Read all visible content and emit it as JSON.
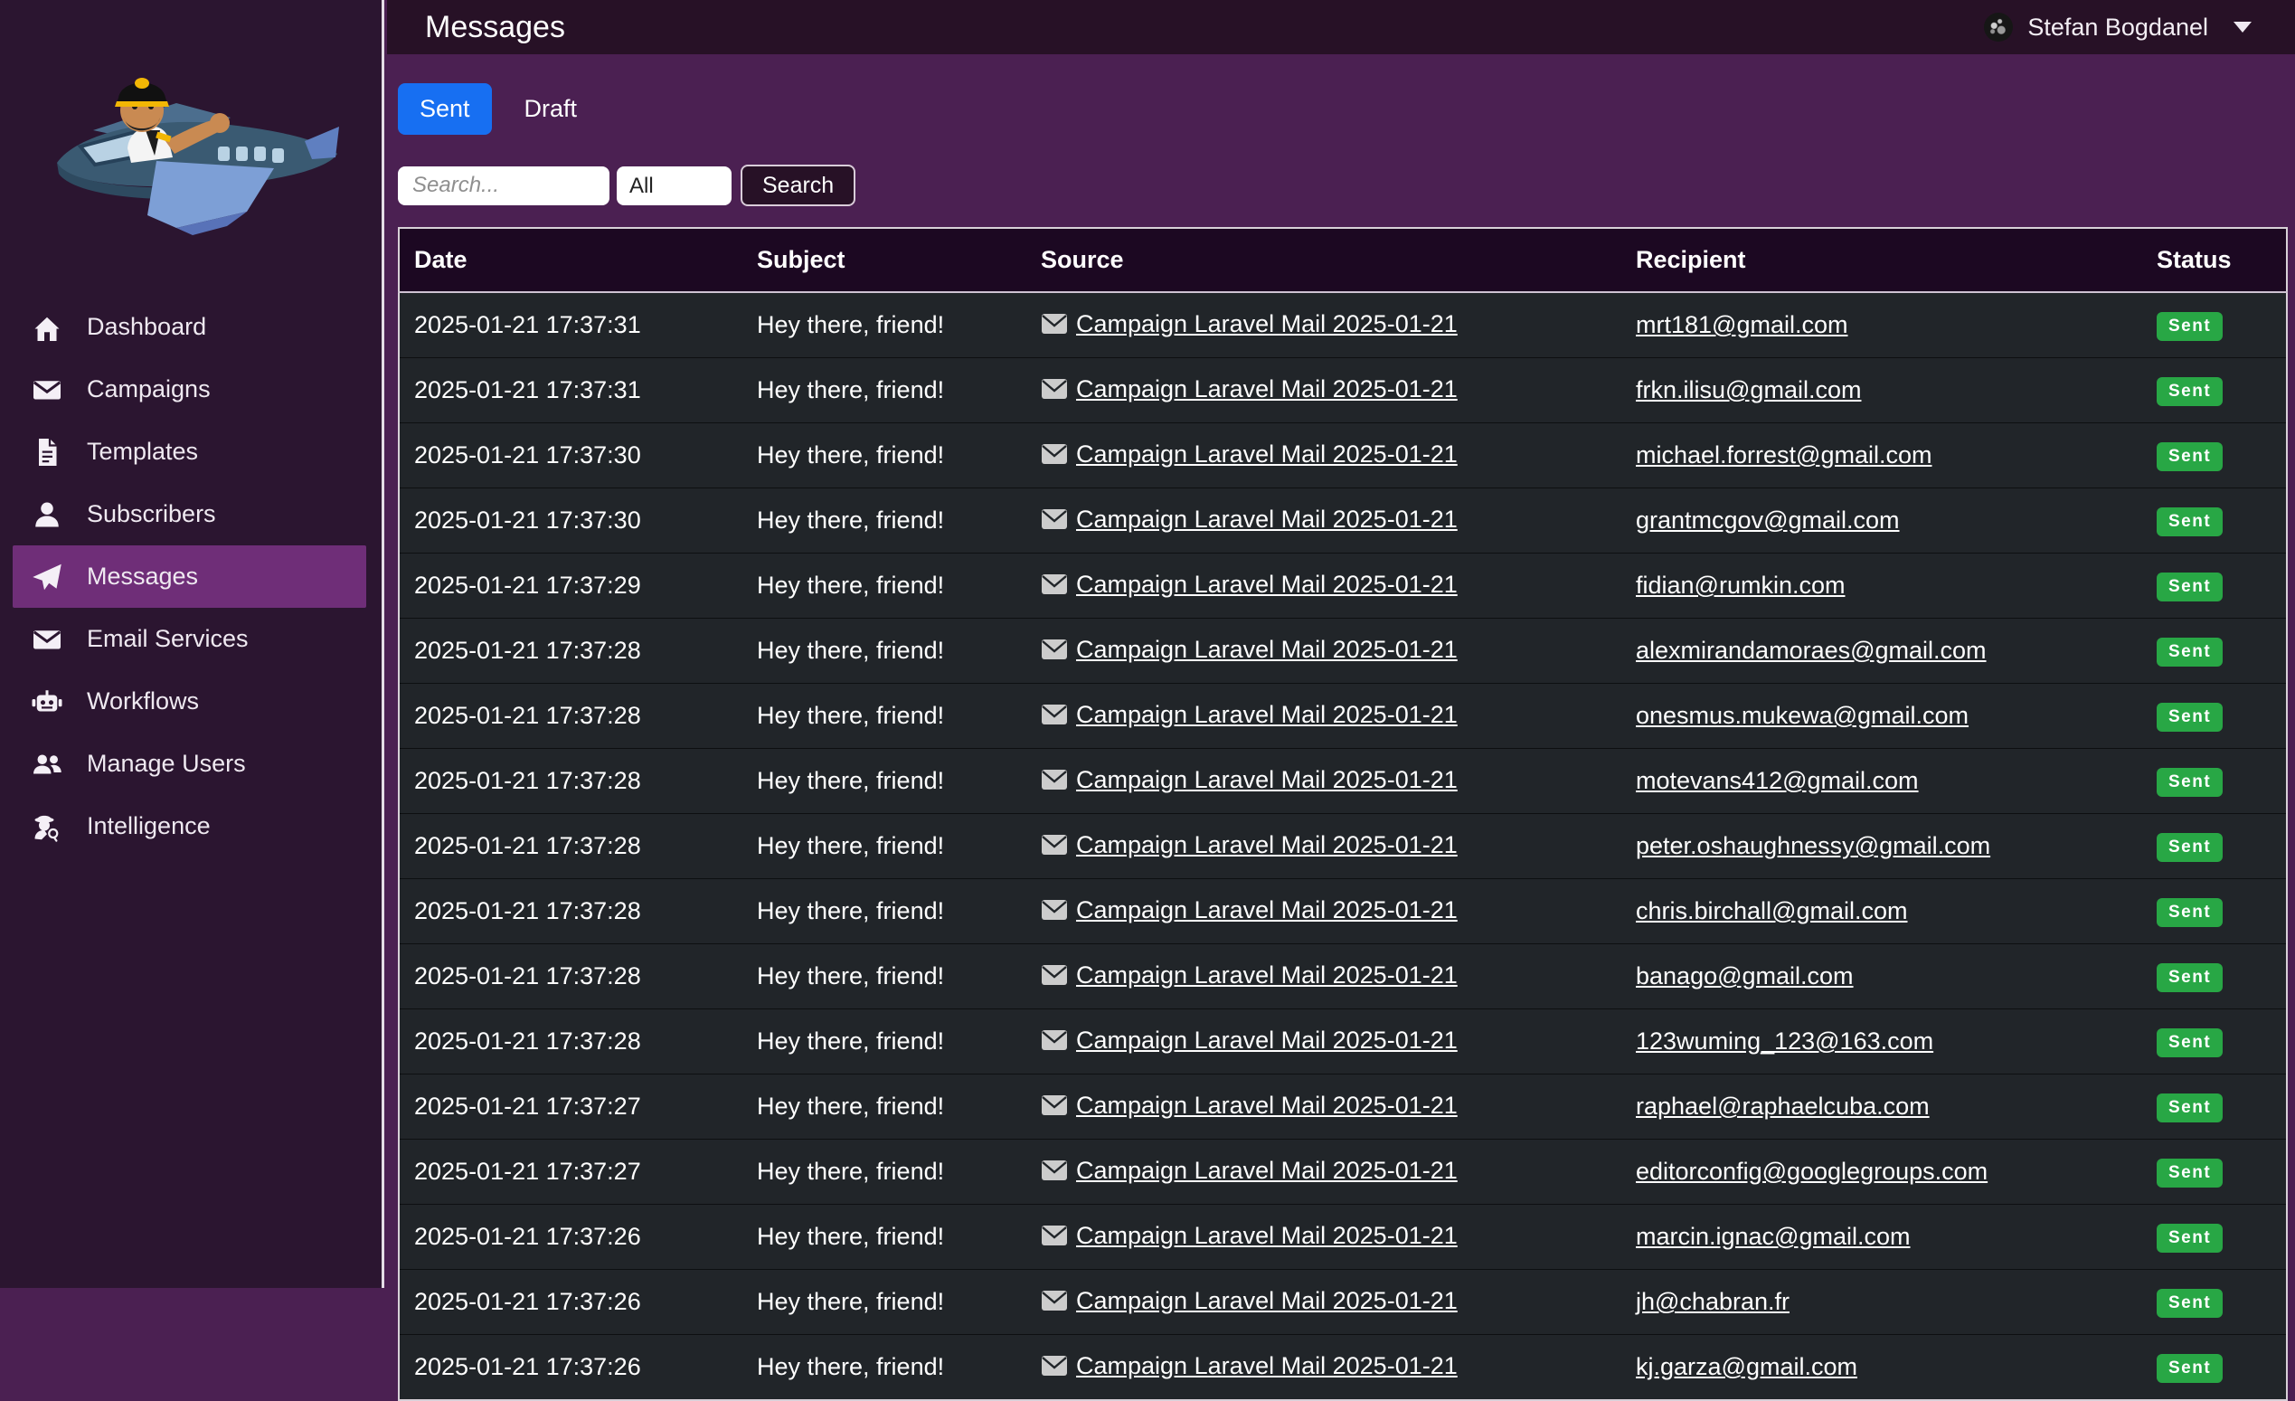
{
  "header": {
    "title": "Messages",
    "user": {
      "name": "Stefan Bogdanel"
    }
  },
  "sidebar": {
    "active_index": 4,
    "items": [
      {
        "label": "Dashboard",
        "icon": "home"
      },
      {
        "label": "Campaigns",
        "icon": "envelope"
      },
      {
        "label": "Templates",
        "icon": "file"
      },
      {
        "label": "Subscribers",
        "icon": "person"
      },
      {
        "label": "Messages",
        "icon": "paper-plane"
      },
      {
        "label": "Email Services",
        "icon": "envelope"
      },
      {
        "label": "Workflows",
        "icon": "robot"
      },
      {
        "label": "Manage Users",
        "icon": "users"
      },
      {
        "label": "Intelligence",
        "icon": "detective"
      }
    ]
  },
  "tabs": [
    {
      "label": "Sent",
      "active": true
    },
    {
      "label": "Draft",
      "active": false
    }
  ],
  "filters": {
    "search_placeholder": "Search...",
    "type_selected": "All",
    "search_button": "Search"
  },
  "table": {
    "columns": [
      "Date",
      "Subject",
      "Source",
      "Recipient",
      "Status"
    ],
    "rows": [
      {
        "date": "2025-01-21 17:37:31",
        "subject": "Hey there, friend!",
        "source": "Campaign Laravel Mail 2025-01-21",
        "recipient": "mrt181@gmail.com",
        "status": "Sent"
      },
      {
        "date": "2025-01-21 17:37:31",
        "subject": "Hey there, friend!",
        "source": "Campaign Laravel Mail 2025-01-21",
        "recipient": "frkn.ilisu@gmail.com",
        "status": "Sent"
      },
      {
        "date": "2025-01-21 17:37:30",
        "subject": "Hey there, friend!",
        "source": "Campaign Laravel Mail 2025-01-21",
        "recipient": "michael.forrest@gmail.com",
        "status": "Sent"
      },
      {
        "date": "2025-01-21 17:37:30",
        "subject": "Hey there, friend!",
        "source": "Campaign Laravel Mail 2025-01-21",
        "recipient": "grantmcgov@gmail.com",
        "status": "Sent"
      },
      {
        "date": "2025-01-21 17:37:29",
        "subject": "Hey there, friend!",
        "source": "Campaign Laravel Mail 2025-01-21",
        "recipient": "fidian@rumkin.com",
        "status": "Sent"
      },
      {
        "date": "2025-01-21 17:37:28",
        "subject": "Hey there, friend!",
        "source": "Campaign Laravel Mail 2025-01-21",
        "recipient": "alexmirandamoraes@gmail.com",
        "status": "Sent"
      },
      {
        "date": "2025-01-21 17:37:28",
        "subject": "Hey there, friend!",
        "source": "Campaign Laravel Mail 2025-01-21",
        "recipient": "onesmus.mukewa@gmail.com",
        "status": "Sent"
      },
      {
        "date": "2025-01-21 17:37:28",
        "subject": "Hey there, friend!",
        "source": "Campaign Laravel Mail 2025-01-21",
        "recipient": "motevans412@gmail.com",
        "status": "Sent"
      },
      {
        "date": "2025-01-21 17:37:28",
        "subject": "Hey there, friend!",
        "source": "Campaign Laravel Mail 2025-01-21",
        "recipient": "peter.oshaughnessy@gmail.com",
        "status": "Sent"
      },
      {
        "date": "2025-01-21 17:37:28",
        "subject": "Hey there, friend!",
        "source": "Campaign Laravel Mail 2025-01-21",
        "recipient": "chris.birchall@gmail.com",
        "status": "Sent"
      },
      {
        "date": "2025-01-21 17:37:28",
        "subject": "Hey there, friend!",
        "source": "Campaign Laravel Mail 2025-01-21",
        "recipient": "banago@gmail.com",
        "status": "Sent"
      },
      {
        "date": "2025-01-21 17:37:28",
        "subject": "Hey there, friend!",
        "source": "Campaign Laravel Mail 2025-01-21",
        "recipient": "123wuming_123@163.com",
        "status": "Sent"
      },
      {
        "date": "2025-01-21 17:37:27",
        "subject": "Hey there, friend!",
        "source": "Campaign Laravel Mail 2025-01-21",
        "recipient": "raphael@raphaelcuba.com",
        "status": "Sent"
      },
      {
        "date": "2025-01-21 17:37:27",
        "subject": "Hey there, friend!",
        "source": "Campaign Laravel Mail 2025-01-21",
        "recipient": "editorconfig@googlegroups.com",
        "status": "Sent"
      },
      {
        "date": "2025-01-21 17:37:26",
        "subject": "Hey there, friend!",
        "source": "Campaign Laravel Mail 2025-01-21",
        "recipient": "marcin.ignac@gmail.com",
        "status": "Sent"
      },
      {
        "date": "2025-01-21 17:37:26",
        "subject": "Hey there, friend!",
        "source": "Campaign Laravel Mail 2025-01-21",
        "recipient": "jh@chabran.fr",
        "status": "Sent"
      },
      {
        "date": "2025-01-21 17:37:26",
        "subject": "Hey there, friend!",
        "source": "Campaign Laravel Mail 2025-01-21",
        "recipient": "kj.garza@gmail.com",
        "status": "Sent"
      }
    ]
  },
  "colors": {
    "sidebar_bg": "#2b1530",
    "sidebar_active": "#6f2e78",
    "topbar_bg": "#271126",
    "content_bg": "#4b2052",
    "table_header_bg": "#1c0822",
    "table_row_bg": "#212529",
    "primary_blue": "#176ff2",
    "badge_green": "#28a745"
  }
}
